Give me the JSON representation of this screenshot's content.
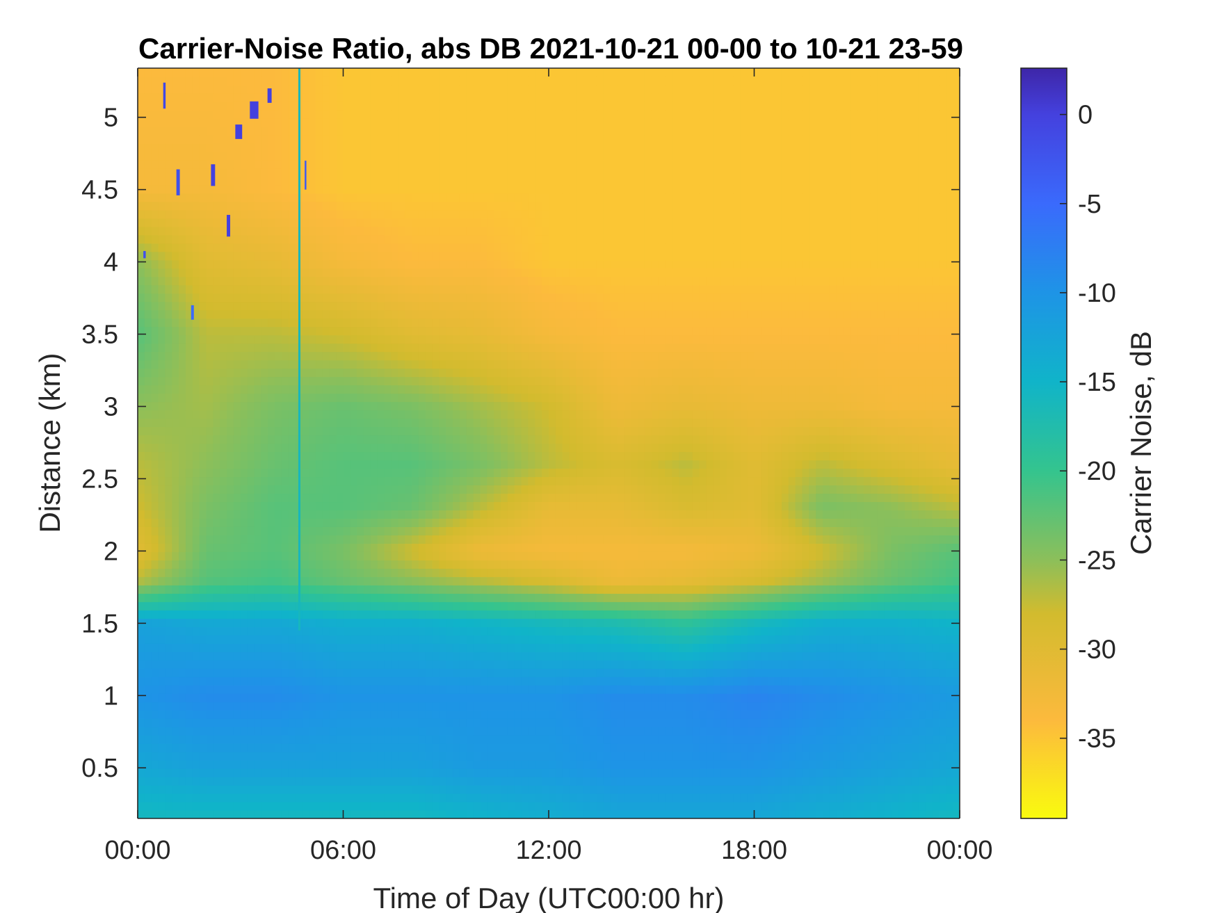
{
  "chart_data": {
    "type": "heatmap",
    "title": "Carrier-Noise Ratio, abs DB 2021-10-21 00-00 to 10-21 23-59",
    "xlabel": "Time of Day (UTC00:00 hr)",
    "ylabel": "Distance (km)",
    "x_ticks": [
      "00:00",
      "06:00",
      "12:00",
      "18:00",
      "00:00"
    ],
    "x_tick_hours": [
      0,
      6,
      12,
      18,
      24
    ],
    "xlim_hours": [
      0,
      24
    ],
    "y_ticks": [
      "0.5",
      "1",
      "1.5",
      "2",
      "2.5",
      "3",
      "3.5",
      "4",
      "4.5",
      "5"
    ],
    "y_tick_values": [
      0.5,
      1,
      1.5,
      2,
      2.5,
      3,
      3.5,
      4,
      4.5,
      5
    ],
    "ylim": [
      0.15,
      5.34
    ],
    "colorbar": {
      "label": "Carrier Noise, dB",
      "ticks": [
        "0",
        "-5",
        "-10",
        "-15",
        "-20",
        "-25",
        "-30",
        "-35"
      ],
      "tick_values": [
        0,
        -5,
        -10,
        -15,
        -20,
        -25,
        -30,
        -35
      ],
      "clim": [
        -39.5,
        2.6
      ],
      "colormap": "parula (reversed)",
      "colormap_stops": [
        {
          "value": -39.5,
          "color": "#f9fb0e"
        },
        {
          "value": -34,
          "color": "#fcba3d"
        },
        {
          "value": -28,
          "color": "#d2bb2e"
        },
        {
          "value": -25,
          "color": "#8cbf5a"
        },
        {
          "value": -20,
          "color": "#34c48e"
        },
        {
          "value": -15,
          "color": "#10b4c9"
        },
        {
          "value": -10,
          "color": "#1e94e6"
        },
        {
          "value": -5,
          "color": "#3a6afc"
        },
        {
          "value": 0,
          "color": "#4441de"
        },
        {
          "value": 2.6,
          "color": "#3e26a8"
        }
      ]
    },
    "profile_hours": [
      0,
      2,
      4,
      6,
      8,
      10,
      12,
      14,
      16,
      18,
      20,
      22,
      24
    ],
    "profile_distance_km": [
      0.15,
      0.5,
      1.0,
      1.5,
      1.8,
      2.0,
      2.3,
      2.6,
      3.0,
      3.5,
      4.0,
      4.5,
      5.34
    ],
    "profile_dB": [
      [
        -16,
        -16,
        -16,
        -16,
        -16,
        -15,
        -14,
        -13,
        -13,
        -13,
        -14,
        -15,
        -16
      ],
      [
        -13,
        -12,
        -12,
        -12,
        -12,
        -11,
        -11,
        -10,
        -10,
        -10,
        -11,
        -12,
        -13
      ],
      [
        -10,
        -9,
        -9,
        -10,
        -10,
        -10,
        -10,
        -9,
        -9,
        -8,
        -9,
        -10,
        -11
      ],
      [
        -12,
        -13,
        -13,
        -14,
        -14,
        -15,
        -16,
        -17,
        -19,
        -16,
        -14,
        -14,
        -15
      ],
      [
        -27,
        -22,
        -21,
        -23,
        -25,
        -27,
        -29,
        -32,
        -31,
        -29,
        -26,
        -23,
        -21
      ],
      [
        -30,
        -23,
        -22,
        -24,
        -28,
        -32,
        -33,
        -33,
        -33,
        -32,
        -28,
        -24,
        -22
      ],
      [
        -28,
        -24,
        -22,
        -22,
        -23,
        -27,
        -31,
        -31,
        -29,
        -30,
        -24,
        -25,
        -27
      ],
      [
        -27,
        -25,
        -23,
        -22,
        -22,
        -24,
        -27,
        -29,
        -27,
        -30,
        -27,
        -29,
        -31
      ],
      [
        -25,
        -26,
        -24,
        -23,
        -24,
        -26,
        -28,
        -32,
        -31,
        -32,
        -32,
        -33,
        -33
      ],
      [
        -22,
        -27,
        -27,
        -28,
        -30,
        -31,
        -33,
        -34,
        -34,
        -34,
        -34,
        -34,
        -34
      ],
      [
        -25,
        -30,
        -31,
        -33,
        -34,
        -34,
        -35,
        -35,
        -35,
        -35,
        -35,
        -35,
        -35
      ],
      [
        -33,
        -33,
        -34,
        -35,
        -35,
        -35,
        -35,
        -35,
        -35,
        -35,
        -35,
        -35,
        -35
      ],
      [
        -34,
        -34,
        -34,
        -35,
        -35,
        -35,
        -35,
        -35,
        -35,
        -35,
        -35,
        -35,
        -35
      ]
    ]
  }
}
